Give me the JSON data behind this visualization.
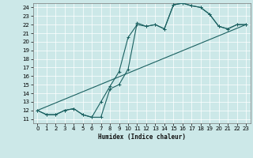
{
  "title": "",
  "xlabel": "Humidex (Indice chaleur)",
  "xlim": [
    -0.5,
    23.5
  ],
  "ylim": [
    10.5,
    24.5
  ],
  "xticks": [
    0,
    1,
    2,
    3,
    4,
    5,
    6,
    7,
    8,
    9,
    10,
    11,
    12,
    13,
    14,
    15,
    16,
    17,
    18,
    19,
    20,
    21,
    22,
    23
  ],
  "yticks": [
    11,
    12,
    13,
    14,
    15,
    16,
    17,
    18,
    19,
    20,
    21,
    22,
    23,
    24
  ],
  "bg_color": "#cce8e8",
  "line_color": "#1a6060",
  "grid_color": "#ffffff",
  "line1_x": [
    0,
    1,
    2,
    3,
    4,
    5,
    6,
    7,
    8,
    9,
    10,
    11,
    12,
    13,
    14,
    15,
    16,
    17,
    18,
    19,
    20,
    21,
    22,
    23
  ],
  "line1_y": [
    12,
    11.5,
    11.5,
    12,
    12.2,
    11.5,
    11.2,
    11.2,
    14.5,
    15.0,
    16.8,
    22.2,
    21.8,
    22.0,
    21.5,
    24.3,
    24.5,
    24.2,
    24.0,
    23.2,
    21.8,
    21.5,
    22.0,
    22.0
  ],
  "line2_x": [
    0,
    1,
    2,
    3,
    4,
    5,
    6,
    7,
    8,
    9,
    10,
    11,
    12,
    13,
    14,
    15,
    16,
    17,
    18,
    19,
    20,
    21,
    22,
    23
  ],
  "line2_y": [
    12,
    11.5,
    11.5,
    12,
    12.2,
    11.5,
    11.2,
    13.0,
    14.8,
    16.5,
    20.5,
    22.0,
    21.8,
    22.0,
    21.5,
    24.3,
    24.5,
    24.2,
    24.0,
    23.2,
    21.8,
    21.5,
    22.0,
    22.0
  ],
  "line3_x": [
    0,
    23
  ],
  "line3_y": [
    12,
    22.0
  ],
  "xlabel_fontsize": 5.5,
  "tick_fontsize": 5
}
